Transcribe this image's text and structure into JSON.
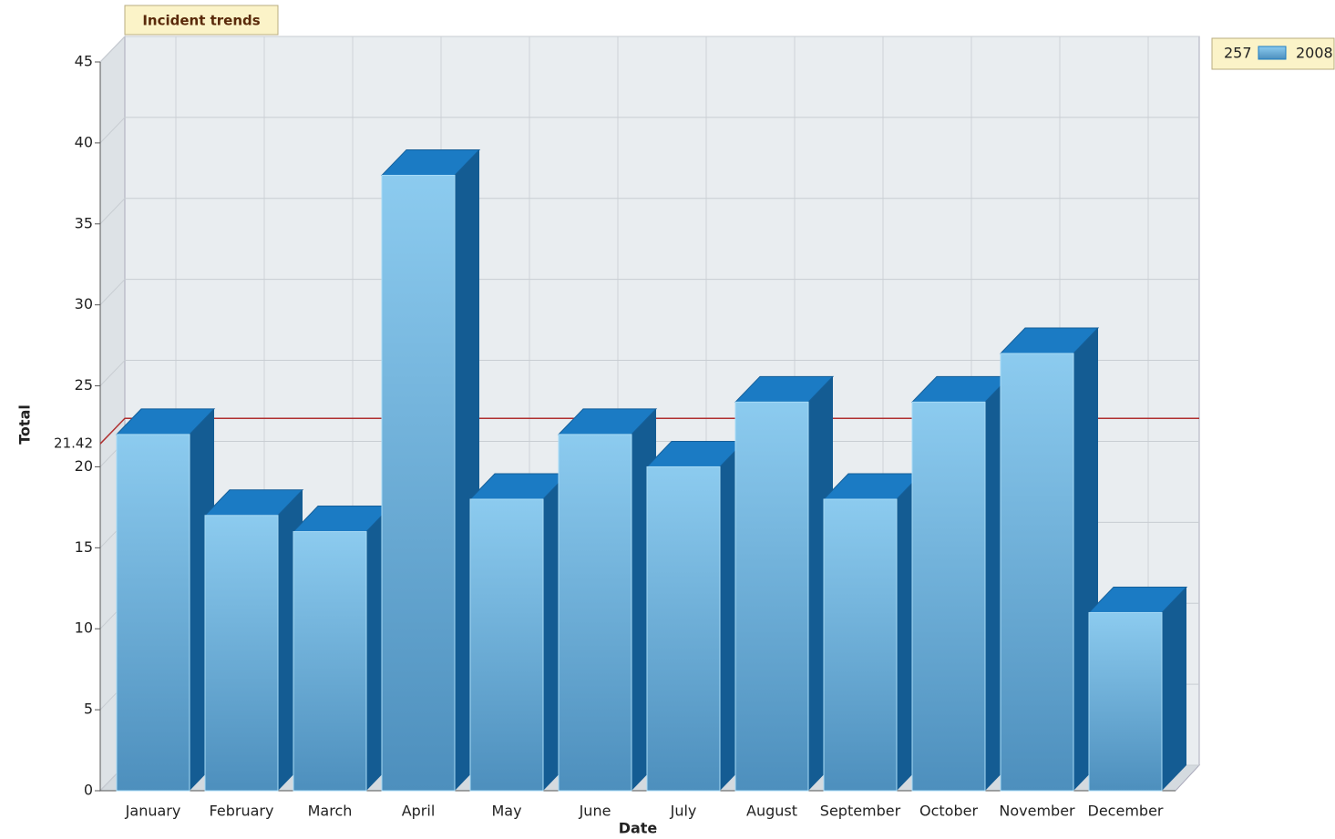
{
  "chart_data": {
    "type": "bar",
    "title": "Incident trends",
    "x_label": "Date",
    "y_label": "Total",
    "categories": [
      "January",
      "February",
      "March",
      "April",
      "May",
      "June",
      "July",
      "August",
      "September",
      "October",
      "November",
      "December"
    ],
    "series": [
      {
        "name": "2008",
        "color": "#1b7bc4",
        "values": [
          22,
          17,
          16,
          38,
          18,
          22,
          20,
          24,
          18,
          24,
          27,
          11
        ]
      }
    ],
    "legend_total": 257,
    "reference_line": {
      "value": 21.42,
      "label": "21.42",
      "color": "#b03030"
    },
    "ylim": [
      0,
      45
    ],
    "yticks": [
      0,
      5,
      10,
      15,
      20,
      25,
      30,
      35,
      40,
      45
    ],
    "grid": true
  }
}
